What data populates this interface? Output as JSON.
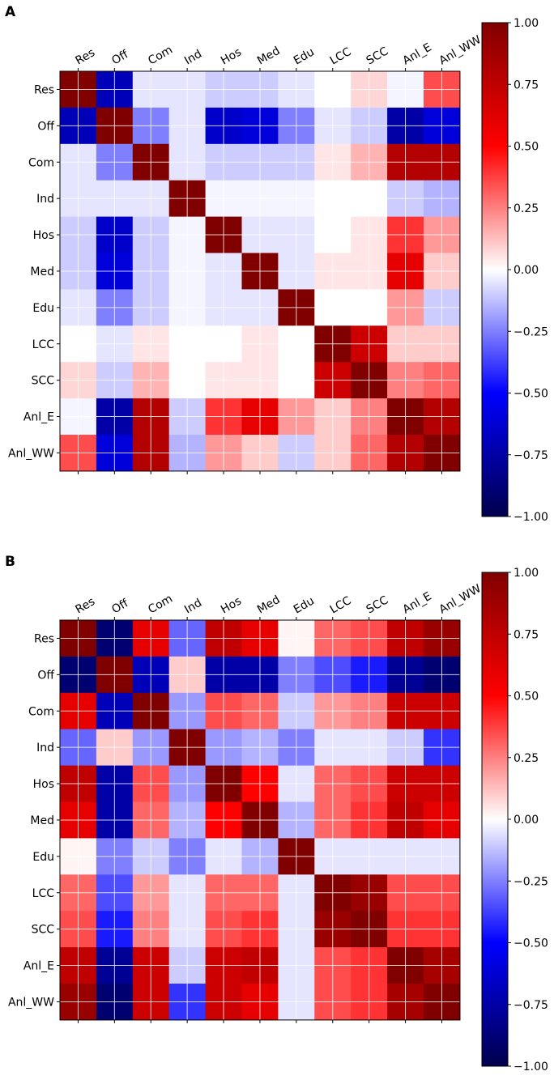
{
  "chart_data": [
    {
      "type": "heatmap",
      "panel": "A",
      "title": "",
      "xlabel": "",
      "ylabel": "",
      "x_categories": [
        "Res",
        "Off",
        "Com",
        "Ind",
        "Hos",
        "Med",
        "Edu",
        "LCC",
        "SCC",
        "Anl_E",
        "Anl_WW"
      ],
      "y_categories": [
        "Res",
        "Off",
        "Com",
        "Ind",
        "Hos",
        "Med",
        "Edu",
        "LCC",
        "SCC",
        "Anl_E",
        "Anl_WW"
      ],
      "colormap": "seismic",
      "vmin": -1.0,
      "vmax": 1.0,
      "colorbar_ticks": [
        "1.00",
        "0.75",
        "0.50",
        "0.25",
        "0.00",
        "−0.25",
        "−0.50",
        "−0.75",
        "−1.00"
      ],
      "values": [
        [
          1.0,
          -0.7,
          -0.05,
          -0.05,
          -0.1,
          -0.1,
          -0.05,
          0.0,
          0.08,
          -0.02,
          0.35
        ],
        [
          -0.7,
          1.0,
          -0.25,
          -0.05,
          -0.65,
          -0.6,
          -0.25,
          -0.05,
          -0.1,
          -0.75,
          -0.6
        ],
        [
          -0.05,
          -0.25,
          1.0,
          -0.05,
          -0.1,
          -0.1,
          -0.1,
          0.05,
          0.15,
          0.8,
          0.8
        ],
        [
          -0.05,
          -0.05,
          -0.05,
          1.0,
          -0.02,
          -0.02,
          -0.02,
          0.0,
          0.0,
          -0.1,
          -0.15
        ],
        [
          -0.1,
          -0.65,
          -0.1,
          -0.02,
          1.0,
          -0.05,
          -0.05,
          0.0,
          0.05,
          0.4,
          0.2
        ],
        [
          -0.1,
          -0.6,
          -0.1,
          -0.02,
          -0.05,
          1.0,
          -0.05,
          0.05,
          0.05,
          0.6,
          0.1
        ],
        [
          -0.05,
          -0.25,
          -0.1,
          -0.02,
          -0.05,
          -0.05,
          1.0,
          0.0,
          0.0,
          0.2,
          -0.1
        ],
        [
          0.0,
          -0.05,
          0.05,
          0.0,
          0.0,
          0.05,
          0.0,
          1.0,
          0.7,
          0.1,
          0.1
        ],
        [
          0.08,
          -0.1,
          0.15,
          0.0,
          0.05,
          0.05,
          0.0,
          0.7,
          1.0,
          0.25,
          0.3
        ],
        [
          -0.02,
          -0.75,
          0.8,
          -0.1,
          0.4,
          0.6,
          0.2,
          0.1,
          0.25,
          1.0,
          0.8
        ],
        [
          0.35,
          -0.6,
          0.8,
          -0.15,
          0.2,
          0.1,
          -0.1,
          0.1,
          0.3,
          0.8,
          1.0
        ]
      ]
    },
    {
      "type": "heatmap",
      "panel": "B",
      "title": "",
      "xlabel": "",
      "ylabel": "",
      "x_categories": [
        "Res",
        "Off",
        "Com",
        "Ind",
        "Hos",
        "Med",
        "Edu",
        "LCC",
        "SCC",
        "Anl_E",
        "Anl_WW"
      ],
      "y_categories": [
        "Res",
        "Off",
        "Com",
        "Ind",
        "Hos",
        "Med",
        "Edu",
        "LCC",
        "SCC",
        "Anl_E",
        "Anl_WW"
      ],
      "colormap": "seismic",
      "vmin": -1.0,
      "vmax": 1.0,
      "colorbar_ticks": [
        "1.00",
        "0.75",
        "0.50",
        "0.25",
        "0.00",
        "−0.25",
        "−0.50",
        "−0.75",
        "−1.00"
      ],
      "values": [
        [
          1.0,
          -0.9,
          0.6,
          -0.3,
          0.75,
          0.6,
          0.02,
          0.3,
          0.35,
          0.75,
          0.9
        ],
        [
          -0.9,
          1.0,
          -0.7,
          0.1,
          -0.75,
          -0.75,
          -0.25,
          -0.35,
          -0.45,
          -0.8,
          -0.9
        ],
        [
          0.6,
          -0.7,
          1.0,
          -0.2,
          0.35,
          0.3,
          -0.1,
          0.2,
          0.25,
          0.7,
          0.7
        ],
        [
          -0.3,
          0.1,
          -0.2,
          1.0,
          -0.2,
          -0.15,
          -0.25,
          -0.05,
          -0.05,
          -0.1,
          -0.4
        ],
        [
          0.75,
          -0.75,
          0.35,
          -0.2,
          1.0,
          0.5,
          -0.05,
          0.3,
          0.35,
          0.7,
          0.7
        ],
        [
          0.6,
          -0.75,
          0.3,
          -0.15,
          0.5,
          1.0,
          -0.15,
          0.3,
          0.4,
          0.75,
          0.6
        ],
        [
          0.02,
          -0.25,
          -0.1,
          -0.25,
          -0.05,
          -0.15,
          1.0,
          -0.05,
          -0.05,
          -0.05,
          -0.05
        ],
        [
          0.3,
          -0.35,
          0.2,
          -0.05,
          0.3,
          0.3,
          -0.05,
          1.0,
          0.9,
          0.35,
          0.35
        ],
        [
          0.35,
          -0.45,
          0.25,
          -0.05,
          0.35,
          0.4,
          -0.05,
          0.9,
          1.0,
          0.4,
          0.4
        ],
        [
          0.75,
          -0.8,
          0.7,
          -0.1,
          0.7,
          0.75,
          -0.05,
          0.35,
          0.4,
          1.0,
          0.85
        ],
        [
          0.9,
          -0.9,
          0.7,
          -0.4,
          0.7,
          0.6,
          -0.05,
          0.35,
          0.4,
          0.85,
          1.0
        ]
      ]
    }
  ]
}
